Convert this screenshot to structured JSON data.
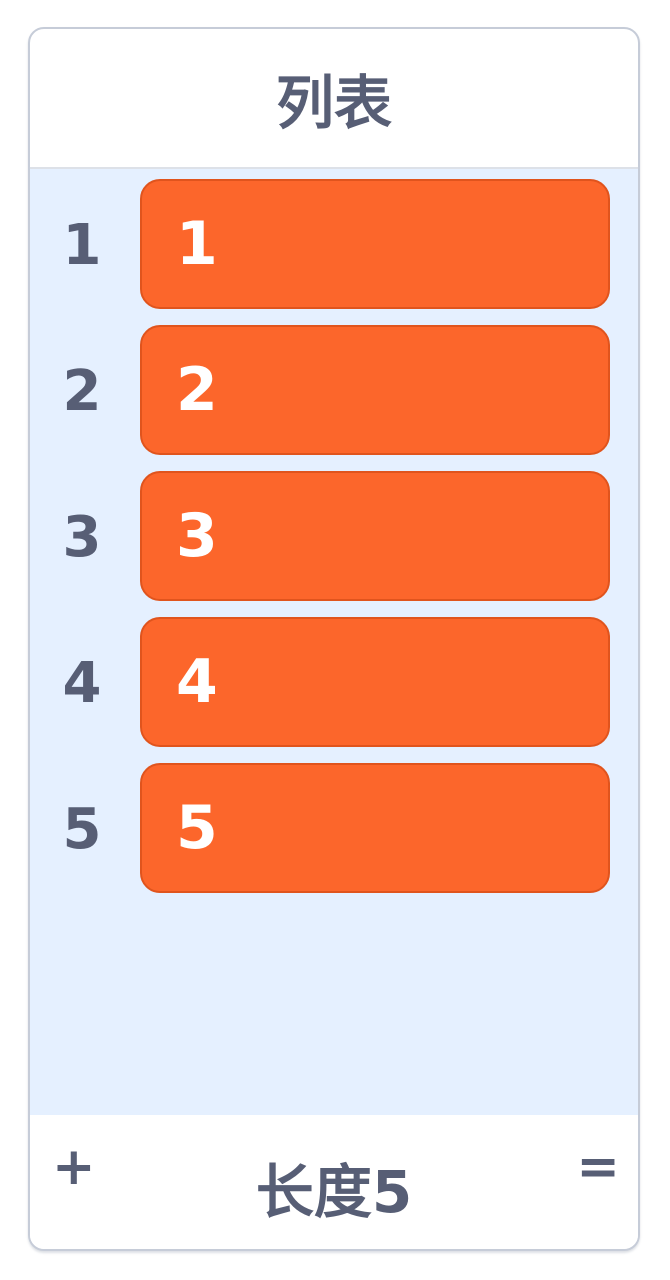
{
  "monitor": {
    "title": "列表",
    "items": [
      {
        "index": "1",
        "value": "1"
      },
      {
        "index": "2",
        "value": "2"
      },
      {
        "index": "3",
        "value": "3"
      },
      {
        "index": "4",
        "value": "4"
      },
      {
        "index": "5",
        "value": "5"
      }
    ],
    "footer": {
      "add_label": "+",
      "length_label": "长度5",
      "resize_label": "="
    },
    "colors": {
      "item_fill": "#fc662b",
      "list_background": "#e5f0ff",
      "text": "#575e75"
    }
  }
}
